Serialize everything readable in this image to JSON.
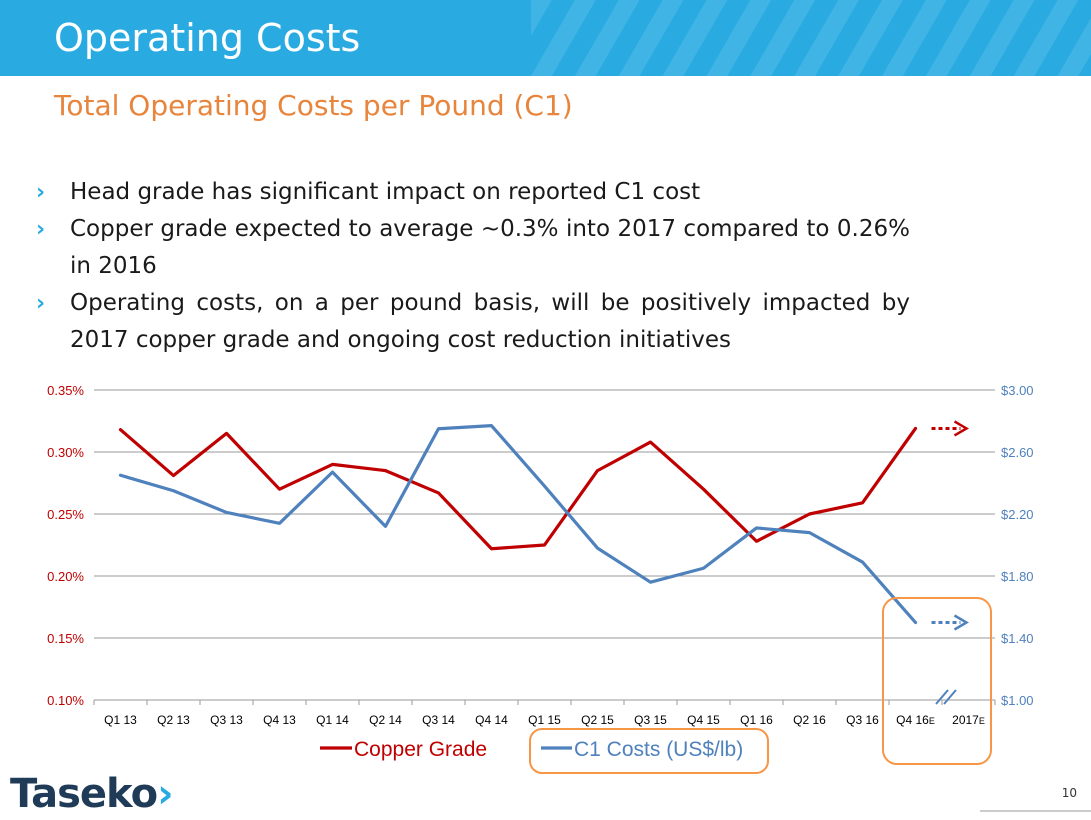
{
  "header": {
    "title": "Operating Costs"
  },
  "subtitle": "Total Operating Costs per Pound (C1)",
  "bullets": [
    "Head grade has significant impact on reported C1 cost",
    "Copper grade expected to average ~0.3% into 2017 compared to 0.26% in 2016",
    "Operating costs, on a per pound basis, will be positively impacted by 2017 copper grade and ongoing cost reduction initiatives"
  ],
  "logo": {
    "text": "Taseko",
    "chevron": "›"
  },
  "page_number": "10",
  "colors": {
    "accent": "#29abe2",
    "subtitle": "#e8853d",
    "copper": "#c00000",
    "c1": "#4f81bd",
    "highlight": "#f79646"
  },
  "chart_data": {
    "type": "line",
    "title": "",
    "categories": [
      "Q1 13",
      "Q2 13",
      "Q3 13",
      "Q4 13",
      "Q1 14",
      "Q2 14",
      "Q3 14",
      "Q4 14",
      "Q1 15",
      "Q2 15",
      "Q3 15",
      "Q4 15",
      "Q1 16",
      "Q2 16",
      "Q3 16",
      "Q4 16",
      "2017"
    ],
    "category_suffix": [
      "",
      "",
      "",
      "",
      "",
      "",
      "",
      "",
      "",
      "",
      "",
      "",
      "",
      "",
      "",
      "E",
      "E"
    ],
    "left_axis": {
      "ticks": [
        "0.35%",
        "0.30%",
        "0.25%",
        "0.20%",
        "0.15%",
        "0.10%"
      ],
      "range": [
        0.1,
        0.35
      ]
    },
    "right_axis": {
      "ticks": [
        "$3.00",
        "$2.60",
        "$2.20",
        "$1.80",
        "$1.40",
        "$1.00"
      ],
      "range": [
        1.0,
        3.0
      ]
    },
    "series": [
      {
        "name": "Copper Grade",
        "axis": "left",
        "unit": "%",
        "values": [
          0.318,
          0.281,
          0.315,
          0.27,
          0.29,
          0.285,
          0.267,
          0.222,
          0.225,
          0.285,
          0.308,
          0.27,
          0.228,
          0.25,
          0.259,
          0.319,
          null
        ]
      },
      {
        "name": "C1 Costs (US$/lb)",
        "axis": "right",
        "unit": "US$/lb",
        "values": [
          2.45,
          2.35,
          2.21,
          2.14,
          2.47,
          2.12,
          2.75,
          2.77,
          2.38,
          1.98,
          1.76,
          1.85,
          2.11,
          2.08,
          1.89,
          1.5,
          null
        ]
      }
    ],
    "grid": true,
    "legend": "bottom"
  }
}
